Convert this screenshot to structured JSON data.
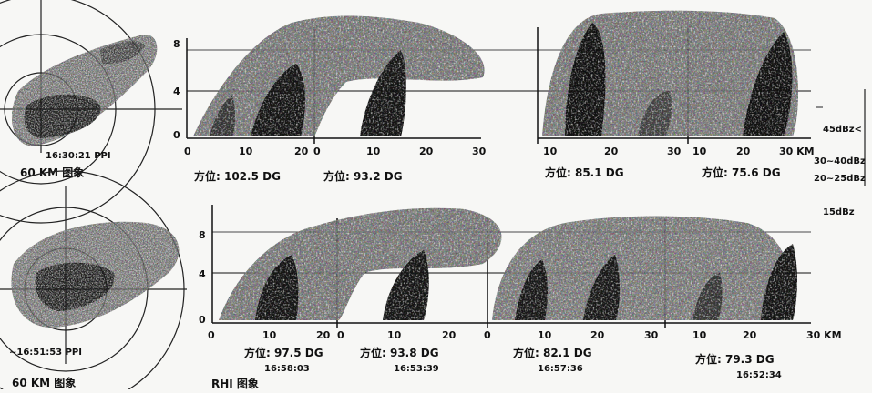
{
  "ppi_top": {
    "time": "16:30:21 PPI",
    "caption": "60 KM 图象"
  },
  "ppi_bottom": {
    "time": "~16:51:53 PPI",
    "caption": "60 KM 图象"
  },
  "rhi_caption": "RHI 图象",
  "top_row": {
    "y_ticks": [
      "8",
      "4",
      "0"
    ],
    "panels": [
      {
        "x_ticks": [
          "0",
          "10",
          "20"
        ],
        "azimuth": "方位: 102.5 DG"
      },
      {
        "x_ticks": [
          "0",
          "10",
          "20",
          "30"
        ],
        "azimuth": "方位: 93.2 DG"
      },
      {
        "x_ticks": [
          "10",
          "20",
          "30"
        ],
        "azimuth": "方位: 85.1 DG"
      },
      {
        "x_ticks": [
          "10",
          "20",
          "30 KM"
        ],
        "azimuth": "方位: 75.6 DG"
      }
    ]
  },
  "bottom_row": {
    "y_ticks": [
      "8",
      "4",
      "0"
    ],
    "panels": [
      {
        "x_ticks": [
          "0",
          "10",
          "20"
        ],
        "azimuth": "方位: 97.5 DG",
        "time": "16:58:03"
      },
      {
        "x_ticks": [
          "0",
          "10",
          "20"
        ],
        "azimuth": "方位: 93.8 DG",
        "time": "16:53:39"
      },
      {
        "x_ticks": [
          "0",
          "10",
          "20",
          "30"
        ],
        "azimuth": "方位: 82.1 DG",
        "time": "16:57:36"
      },
      {
        "x_ticks": [
          "10",
          "20",
          "30 KM"
        ],
        "azimuth": "方位: 79.3 DG",
        "time": "16:52:34"
      }
    ]
  },
  "legend": {
    "l1": "45dBz<",
    "l2": "30~40dBz",
    "l3": "20~25dBz",
    "l4": "15dBz"
  }
}
